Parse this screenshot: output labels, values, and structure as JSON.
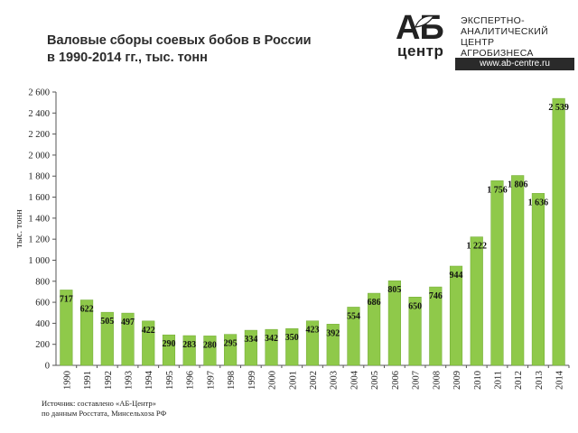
{
  "header": {
    "title_line1": "Валовые сборы соевых бобов в России",
    "title_line2": "в 1990-2014 гг., тыс. тонн"
  },
  "logo": {
    "brand_ab": "АБ",
    "brand_centr": "центр",
    "text_line1": "ЭКСПЕРТНО-",
    "text_line2": "АНАЛИТИЧЕСКИЙ",
    "text_line3": "ЦЕНТР",
    "text_line4": "АГРОБИЗНЕСА",
    "url": "www.ab-centre.ru"
  },
  "footer": {
    "source_line1": "Источник:  составлено «АБ-Центр»",
    "source_line2": "по данным Росстата, Минсельхоза  РФ"
  },
  "colors": {
    "bar": "#8fc94a",
    "bar_edge": "#6fa932",
    "axis": "#555555"
  },
  "chart_data": {
    "type": "bar",
    "ylabel": "тыс. тонн",
    "xlabel": "",
    "ylim": [
      0,
      2600
    ],
    "yticks": [
      0,
      200,
      400,
      600,
      800,
      1000,
      1200,
      1400,
      1600,
      1800,
      2000,
      2200,
      2400,
      2600
    ],
    "ytick_labels": [
      "0",
      "200",
      "400",
      "600",
      "800",
      "1 000",
      "1 200",
      "1 400",
      "1 600",
      "1 800",
      "2 000",
      "2 200",
      "2 400",
      "2 600"
    ],
    "grid": false,
    "legend": "none",
    "categories": [
      "1990",
      "1991",
      "1992",
      "1993",
      "1994",
      "1995",
      "1996",
      "1997",
      "1998",
      "1999",
      "2000",
      "2001",
      "2002",
      "2003",
      "2004",
      "2005",
      "2006",
      "2007",
      "2008",
      "2009",
      "2010",
      "2011",
      "2012",
      "2013",
      "2014"
    ],
    "values": [
      717,
      622,
      505,
      497,
      422,
      290,
      283,
      280,
      295,
      334,
      342,
      350,
      423,
      392,
      554,
      686,
      805,
      650,
      746,
      944,
      1222,
      1756,
      1806,
      1636,
      2539
    ],
    "value_labels": [
      "717",
      "622",
      "505",
      "497",
      "422",
      "290",
      "283",
      "280",
      "295",
      "334",
      "342",
      "350",
      "423",
      "392",
      "554",
      "686",
      "805",
      "650",
      "746",
      "944",
      "1 222",
      "1 756",
      "1 806",
      "1 636",
      "2 539"
    ]
  }
}
